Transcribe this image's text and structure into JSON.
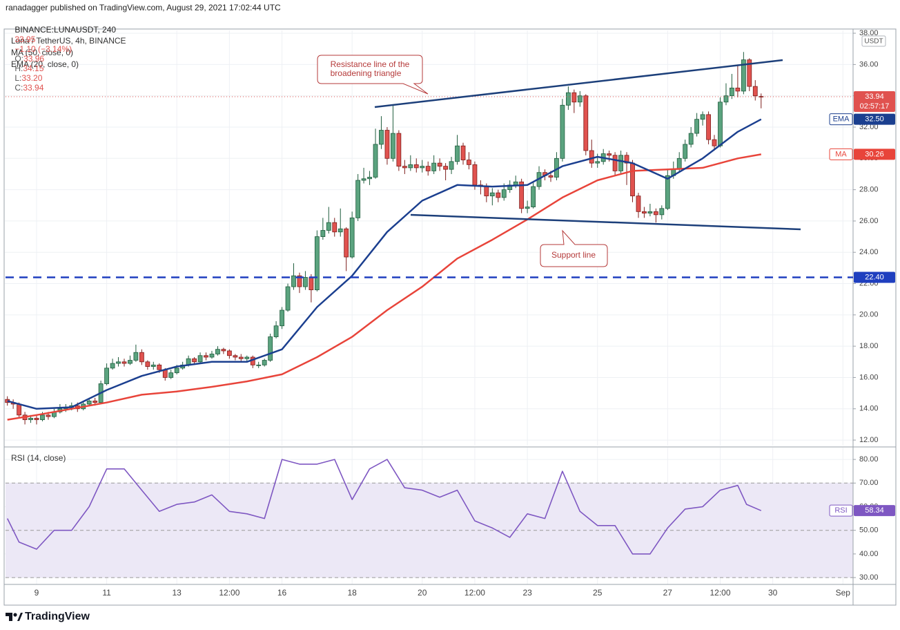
{
  "header": {
    "publisher": "ranadagger published on TradingView.com, August 29, 2021 17:02:44 UTC",
    "symbol": "BINANCE:LUNAUSDT, 240",
    "last": "33.95",
    "change": "−1.10 (−3.14%)",
    "ohlc": [
      {
        "label": "O:",
        "value": "33.96"
      },
      {
        "label": "H:",
        "value": "34.15"
      },
      {
        "label": "L:",
        "value": "33.20"
      },
      {
        "label": "C:",
        "value": "33.94"
      }
    ]
  },
  "footer": {
    "brand": "TradingView"
  },
  "annotations": [
    {
      "lines": [
        "Resistance line of the",
        "broadening triangle"
      ]
    },
    {
      "lines": [
        "Support line"
      ]
    }
  ],
  "chart_data": [
    {
      "type": "candlestick",
      "title": "Luna / TetherUS, 4h, BINANCE",
      "currency": "USDT",
      "up_color": "#5ba37f",
      "up_border": "#1f5c3d",
      "down_color": "#e0524f",
      "down_border": "#7d1d1b",
      "grid": true,
      "xlim": [
        8.114,
        32.29
      ],
      "ylim": [
        11.65,
        38.18
      ],
      "xticks": [
        9,
        11,
        13,
        {
          "value": 14.5,
          "label": "12:00"
        },
        16,
        18,
        20,
        {
          "value": 21.5,
          "label": "12:00"
        },
        23,
        25,
        27,
        {
          "value": 28.5,
          "label": "12:00"
        },
        30,
        {
          "value": 32,
          "label": "Sep"
        }
      ],
      "yticks": [
        {
          "value": 12,
          "label": "12.00"
        },
        {
          "value": 14,
          "label": "14.00"
        },
        {
          "value": 16,
          "label": "16.00"
        },
        {
          "value": 18,
          "label": "18.00"
        },
        {
          "value": 20,
          "label": "20.00"
        },
        {
          "value": 22,
          "label": "22.00"
        },
        {
          "value": 24,
          "label": "24.00"
        },
        {
          "value": 26,
          "label": "26.00"
        },
        {
          "value": 28,
          "label": "28.00"
        },
        {
          "value": 30,
          "label": "30.00"
        },
        {
          "value": 32,
          "label": "32.00"
        },
        {
          "value": 34,
          "label": "34.00"
        },
        {
          "value": 36,
          "label": "36.00"
        },
        {
          "value": 38,
          "label": "38.00"
        }
      ],
      "x": [
        8.167,
        8.333,
        8.5,
        8.667,
        8.833,
        9,
        9.167,
        9.333,
        9.5,
        9.667,
        9.833,
        10,
        10.167,
        10.333,
        10.5,
        10.667,
        10.833,
        11,
        11.167,
        11.333,
        11.5,
        11.667,
        11.833,
        12,
        12.167,
        12.333,
        12.5,
        12.667,
        12.833,
        13,
        13.167,
        13.333,
        13.5,
        13.667,
        13.833,
        14,
        14.167,
        14.333,
        14.5,
        14.667,
        14.833,
        15,
        15.167,
        15.333,
        15.5,
        15.667,
        15.833,
        16,
        16.167,
        16.333,
        16.5,
        16.667,
        16.833,
        17,
        17.167,
        17.333,
        17.5,
        17.667,
        17.833,
        18,
        18.167,
        18.333,
        18.5,
        18.667,
        18.833,
        19,
        19.167,
        19.333,
        19.5,
        19.667,
        19.833,
        20,
        20.167,
        20.333,
        20.5,
        20.667,
        20.833,
        21,
        21.167,
        21.333,
        21.5,
        21.667,
        21.833,
        22,
        22.167,
        22.333,
        22.5,
        22.667,
        22.833,
        23,
        23.167,
        23.333,
        23.5,
        23.667,
        23.833,
        24,
        24.167,
        24.333,
        24.5,
        24.667,
        24.833,
        25,
        25.167,
        25.333,
        25.5,
        25.667,
        25.833,
        26,
        26.167,
        26.333,
        26.5,
        26.667,
        26.833,
        27,
        27.167,
        27.333,
        27.5,
        27.667,
        27.833,
        28,
        28.167,
        28.333,
        28.5,
        28.667,
        28.833,
        29,
        29.167,
        29.333,
        29.5,
        29.667
      ],
      "open": [
        14.6,
        14.4,
        14.3,
        13.6,
        13.3,
        13.4,
        13.3,
        13.6,
        13.5,
        13.8,
        14.0,
        14.1,
        14.2,
        14.0,
        14.3,
        14.5,
        14.4,
        15.6,
        16.6,
        16.9,
        17.0,
        16.9,
        17.1,
        17.6,
        17.0,
        16.7,
        16.8,
        16.5,
        16.0,
        16.3,
        16.6,
        16.8,
        17.2,
        17.0,
        17.4,
        17.3,
        17.5,
        17.8,
        17.7,
        17.4,
        17.3,
        17.2,
        17.3,
        16.8,
        16.8,
        17.1,
        18.6,
        19.3,
        20.3,
        21.8,
        22.5,
        21.8,
        22.4,
        21.6,
        25.0,
        25.4,
        25.9,
        25.3,
        25.5,
        23.7,
        26.2,
        28.6,
        28.7,
        28.8,
        30.9,
        31.8,
        30.0,
        31.6,
        29.5,
        29.4,
        29.6,
        29.4,
        29.5,
        29.2,
        29.7,
        29.5,
        29.3,
        29.8,
        30.8,
        29.9,
        29.6,
        28.3,
        28.2,
        27.6,
        27.8,
        27.5,
        28.0,
        28.3,
        28.5,
        26.8,
        26.9,
        28.2,
        29.1,
        28.9,
        28.8,
        30.0,
        33.4,
        34.2,
        33.6,
        34.0,
        30.5,
        29.7,
        29.8,
        30.3,
        30.2,
        29.2,
        30.2,
        29.7,
        27.6,
        26.6,
        26.5,
        26.6,
        26.4,
        26.8,
        28.9,
        29.3,
        30.0,
        30.9,
        31.6,
        32.5,
        32.8,
        31.2,
        30.8,
        33.6,
        34.0,
        34.5,
        34.3,
        36.3,
        34.6,
        33.96
      ],
      "high": [
        14.8,
        14.6,
        14.4,
        13.8,
        13.6,
        13.6,
        13.8,
        13.8,
        14.0,
        14.3,
        14.3,
        14.4,
        14.4,
        14.5,
        14.7,
        14.7,
        15.8,
        16.9,
        17.2,
        17.3,
        17.2,
        17.4,
        18.1,
        17.8,
        17.1,
        17.0,
        16.9,
        16.6,
        16.5,
        16.8,
        17.0,
        17.4,
        17.3,
        17.6,
        17.6,
        17.7,
        18.0,
        17.9,
        17.8,
        17.5,
        17.5,
        17.4,
        17.4,
        17.0,
        17.2,
        18.8,
        19.6,
        20.5,
        22.0,
        23.3,
        22.7,
        22.8,
        22.6,
        25.4,
        26.2,
        26.9,
        26.2,
        26.8,
        25.6,
        26.6,
        29.0,
        29.4,
        29.2,
        31.9,
        32.7,
        32.0,
        33.4,
        31.8,
        29.9,
        30.2,
        30.0,
        29.9,
        29.8,
        30.2,
        30.0,
        29.7,
        30.1,
        31.5,
        31.0,
        30.4,
        29.8,
        28.6,
        28.4,
        28.1,
        28.0,
        28.4,
        28.6,
        28.9,
        28.7,
        27.3,
        28.5,
        29.5,
        29.3,
        29.2,
        30.4,
        33.8,
        34.6,
        34.4,
        34.3,
        34.1,
        31.2,
        30.3,
        30.6,
        30.5,
        30.4,
        30.5,
        30.4,
        29.9,
        27.8,
        26.9,
        27.1,
        26.8,
        27.0,
        29.3,
        29.8,
        30.4,
        31.2,
        32.0,
        32.9,
        33.0,
        33.0,
        31.5,
        33.9,
        34.8,
        35.4,
        36.0,
        36.8,
        36.4,
        35.0,
        34.15
      ],
      "low": [
        14.2,
        14.0,
        13.4,
        13.0,
        13.1,
        13.0,
        13.2,
        13.3,
        13.4,
        13.7,
        13.8,
        13.9,
        13.8,
        13.9,
        14.2,
        14.2,
        14.3,
        15.5,
        16.5,
        16.7,
        16.7,
        16.8,
        17.0,
        16.8,
        16.5,
        16.5,
        16.3,
        15.8,
        15.9,
        16.2,
        16.5,
        16.7,
        16.8,
        16.9,
        17.1,
        17.2,
        17.4,
        17.5,
        17.2,
        17.1,
        17.0,
        17.0,
        16.6,
        16.6,
        16.7,
        17.0,
        18.5,
        19.1,
        20.2,
        21.6,
        21.4,
        21.6,
        20.8,
        21.5,
        24.8,
        25.2,
        25.0,
        25.0,
        22.8,
        23.6,
        26.0,
        28.4,
        28.3,
        28.7,
        30.6,
        29.6,
        29.8,
        29.2,
        29.0,
        29.2,
        29.1,
        29.1,
        28.9,
        29.0,
        29.2,
        28.6,
        29.0,
        29.6,
        29.6,
        29.3,
        28.0,
        27.7,
        27.2,
        27.0,
        27.2,
        27.3,
        27.8,
        28.1,
        26.5,
        26.5,
        26.8,
        28.0,
        28.6,
        28.5,
        28.6,
        29.8,
        33.1,
        32.9,
        33.3,
        30.2,
        29.4,
        29.4,
        29.6,
        29.8,
        28.9,
        29.0,
        28.3,
        27.2,
        26.2,
        26.2,
        26.3,
        25.9,
        26.1,
        26.7,
        28.7,
        29.1,
        29.8,
        30.7,
        31.4,
        32.1,
        30.9,
        30.5,
        30.7,
        33.4,
        33.8,
        33.9,
        34.1,
        34.3,
        33.7,
        33.2
      ],
      "close": [
        14.4,
        14.3,
        13.6,
        13.3,
        13.4,
        13.3,
        13.6,
        13.5,
        13.8,
        14.0,
        14.1,
        14.2,
        14.0,
        14.3,
        14.5,
        14.4,
        15.6,
        16.6,
        16.9,
        17.0,
        16.9,
        17.1,
        17.6,
        17.0,
        16.7,
        16.8,
        16.5,
        16.0,
        16.3,
        16.6,
        16.8,
        17.2,
        17.0,
        17.4,
        17.3,
        17.5,
        17.8,
        17.7,
        17.4,
        17.3,
        17.2,
        17.3,
        16.8,
        16.8,
        17.1,
        18.6,
        19.3,
        20.3,
        21.8,
        22.5,
        21.8,
        22.4,
        21.6,
        25.0,
        25.4,
        25.9,
        25.3,
        25.5,
        23.7,
        26.2,
        28.6,
        28.7,
        28.8,
        30.9,
        31.8,
        30.0,
        31.6,
        29.5,
        29.4,
        29.6,
        29.4,
        29.5,
        29.2,
        29.7,
        29.5,
        29.3,
        29.8,
        30.8,
        29.9,
        29.6,
        28.3,
        28.2,
        27.6,
        27.8,
        27.5,
        28.0,
        28.3,
        28.5,
        26.8,
        26.9,
        28.2,
        29.1,
        28.9,
        28.8,
        30.0,
        33.4,
        34.2,
        33.6,
        34.0,
        30.5,
        29.7,
        29.8,
        30.3,
        30.2,
        29.2,
        30.2,
        29.7,
        27.6,
        26.6,
        26.5,
        26.6,
        26.4,
        26.8,
        28.9,
        29.3,
        30.0,
        30.9,
        31.6,
        32.5,
        32.8,
        31.2,
        30.8,
        33.6,
        34.0,
        34.5,
        34.3,
        36.3,
        34.6,
        34.0,
        33.94
      ],
      "series": [
        {
          "name": "MA (50, close, 0)",
          "color": "#e8443a",
          "x": [
            8.167,
            9,
            10,
            11,
            12,
            13,
            14,
            15,
            16,
            17,
            18,
            19,
            20,
            21,
            22,
            23,
            24,
            25,
            26,
            27,
            28,
            29,
            29.667
          ],
          "values": [
            13.3,
            13.6,
            14.0,
            14.4,
            14.9,
            15.1,
            15.4,
            15.75,
            16.2,
            17.3,
            18.6,
            20.3,
            21.8,
            23.6,
            24.8,
            26.1,
            27.5,
            28.6,
            29.2,
            29.3,
            29.4,
            30.0,
            30.26
          ]
        },
        {
          "name": "EMA (20, close, 0)",
          "color": "#1b3f8f",
          "x": [
            8.167,
            9,
            10,
            11,
            12,
            13,
            14,
            15,
            16,
            17,
            18,
            19,
            20,
            21,
            22,
            23,
            24,
            25,
            26,
            27,
            28,
            29,
            29.667
          ],
          "values": [
            14.5,
            14.0,
            14.1,
            15.2,
            16.1,
            16.7,
            17.0,
            17.0,
            17.8,
            20.5,
            22.5,
            25.3,
            27.3,
            28.3,
            28.2,
            28.3,
            29.5,
            30.1,
            29.7,
            28.7,
            30.0,
            31.7,
            32.5
          ]
        }
      ],
      "tags": [
        {
          "value": 33.94,
          "label": "33.94",
          "sub": "02:57:17",
          "color": "#e0524f",
          "line": "dotted"
        },
        {
          "name": "EMA",
          "value": 32.5,
          "label": "32.50",
          "color": "#1b3f8f"
        },
        {
          "name": "MA",
          "value": 30.26,
          "label": "30.26",
          "color": "#e8443a"
        },
        {
          "value": 22.4,
          "label": "22.40",
          "color": "#1f3fbf",
          "line": "dashed"
        }
      ]
    },
    {
      "type": "line",
      "title": "RSI (14, close)",
      "color": "#7e57c2",
      "band_color": "#ece8f6",
      "ylim": [
        27.1,
        85.0
      ],
      "yticks": [
        {
          "value": 30,
          "label": "30.00"
        },
        {
          "value": 40,
          "label": "40.00"
        },
        {
          "value": 50,
          "label": "50.00"
        },
        {
          "value": 60,
          "label": "60.00"
        },
        {
          "value": 70,
          "label": "70.00"
        },
        {
          "value": 80,
          "label": "80.00"
        }
      ],
      "band": [
        30,
        70
      ],
      "midline": 50,
      "x": [
        8.167,
        8.5,
        9,
        9.5,
        10,
        10.5,
        11,
        11.5,
        12,
        12.5,
        13,
        13.5,
        14,
        14.5,
        15,
        15.5,
        16,
        16.5,
        17,
        17.5,
        18,
        18.5,
        19,
        19.5,
        20,
        20.5,
        21,
        21.5,
        22,
        22.5,
        23,
        23.5,
        24,
        24.5,
        25,
        25.5,
        26,
        26.5,
        27,
        27.5,
        28,
        28.5,
        29,
        29.25,
        29.667
      ],
      "values": [
        55,
        45,
        42,
        50,
        50,
        60,
        76,
        76,
        67,
        58,
        61,
        62,
        65,
        58,
        57,
        55,
        80,
        78,
        78,
        80,
        63,
        76,
        80,
        68,
        67,
        64,
        67,
        54,
        51,
        47,
        57,
        55,
        75,
        58,
        52,
        52,
        40,
        40,
        51,
        59,
        60,
        67,
        69,
        61,
        58.34
      ],
      "tags": [
        {
          "name": "RSI",
          "value": 58.34,
          "label": "58.34",
          "color": "#7e57c2"
        }
      ]
    }
  ]
}
